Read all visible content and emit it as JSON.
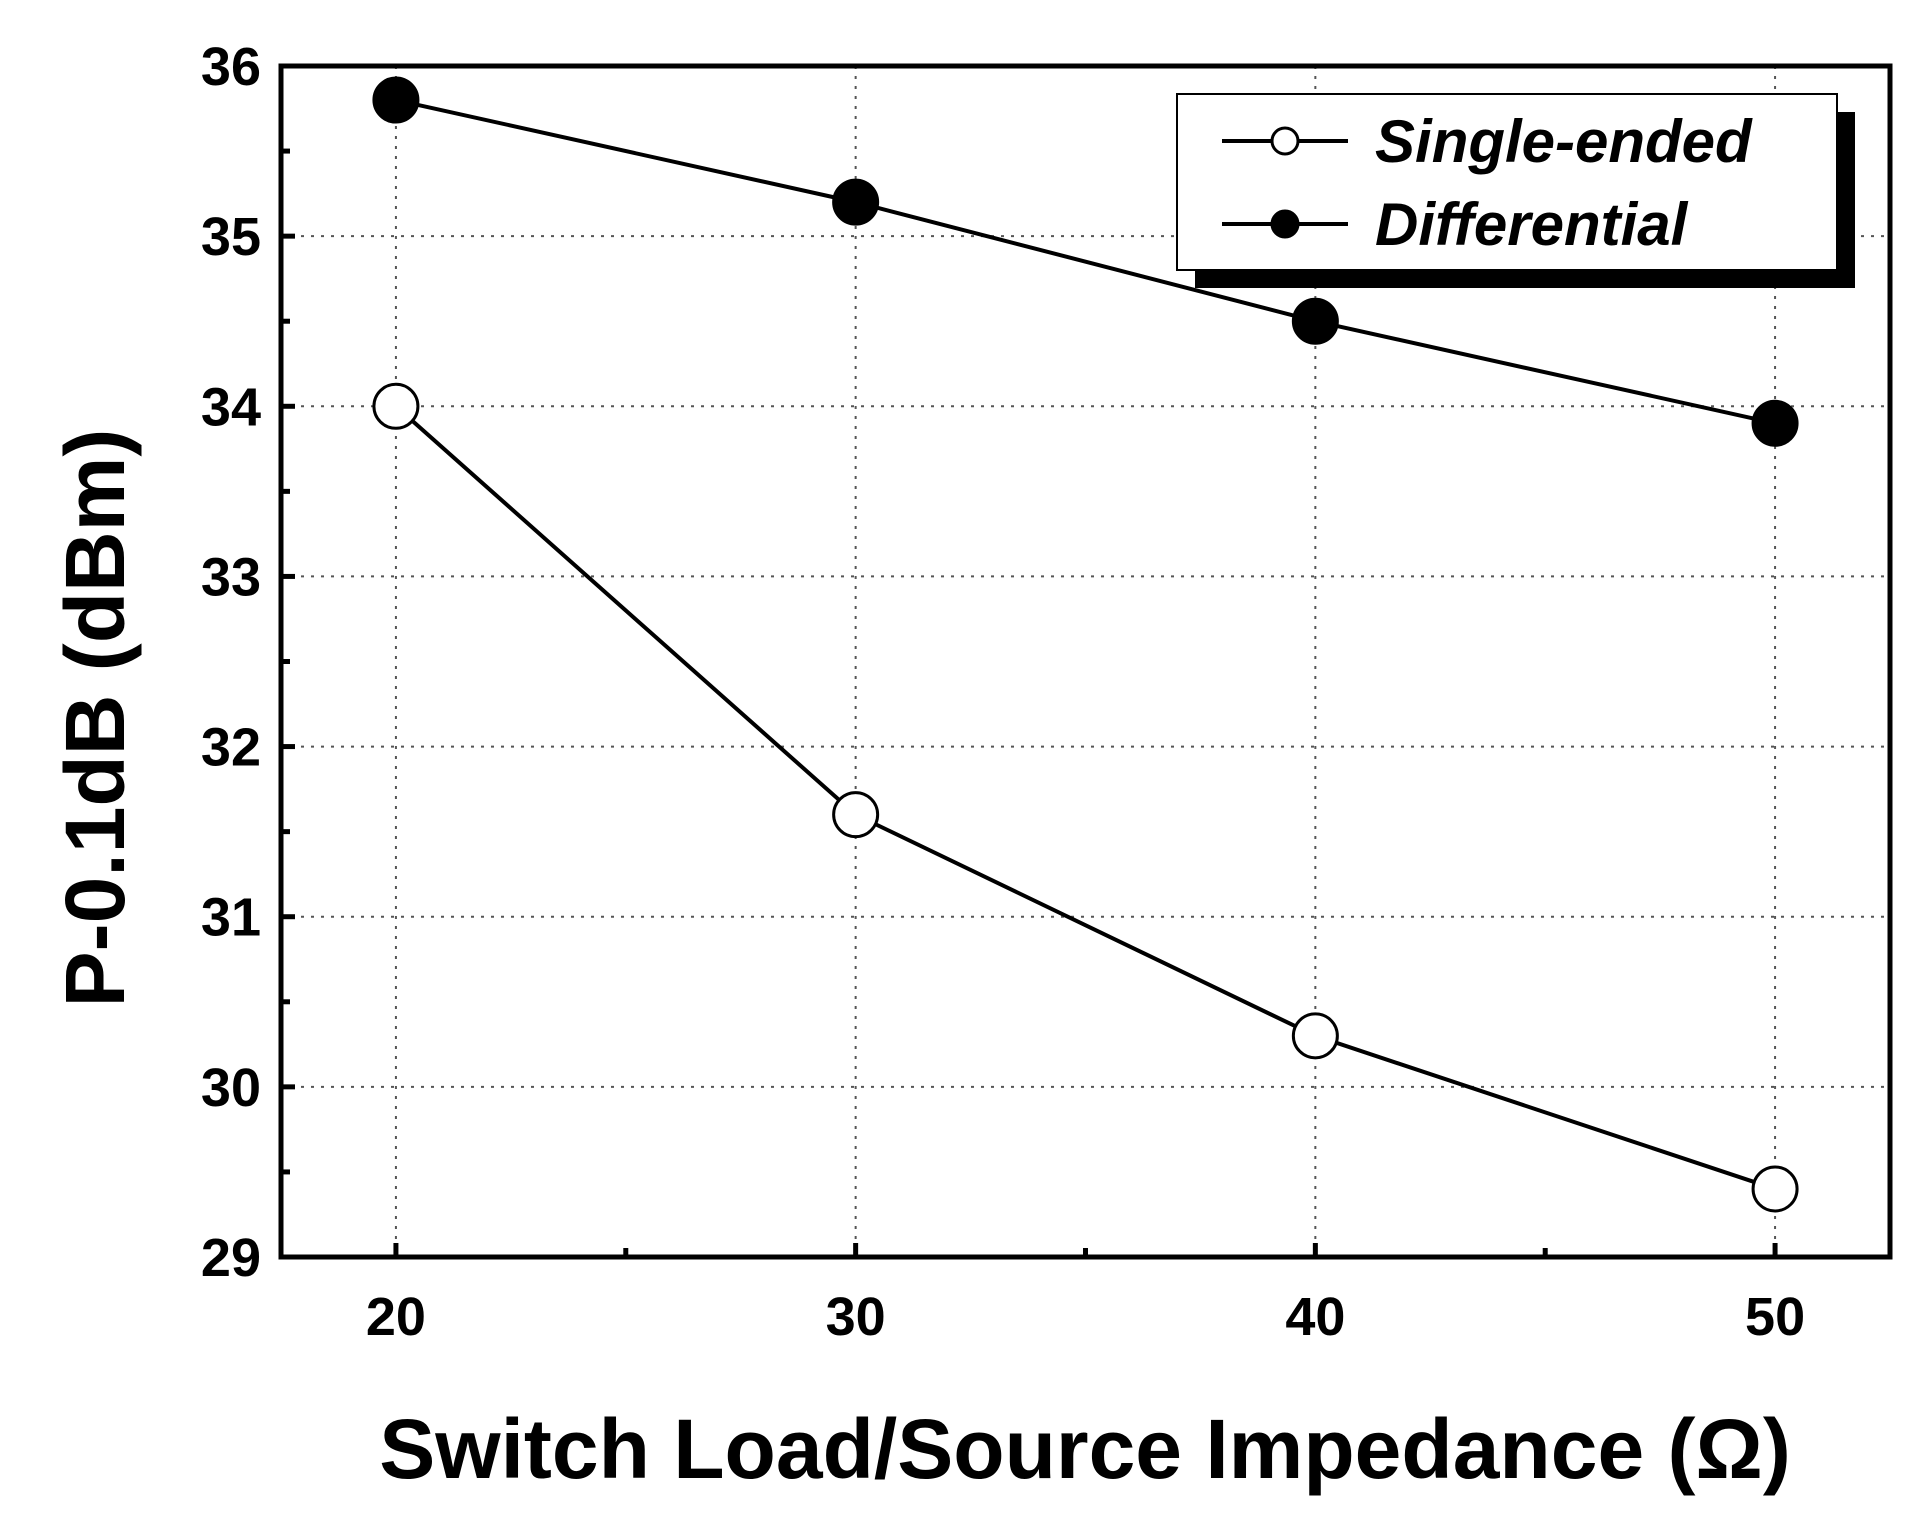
{
  "chart_data": {
    "type": "line",
    "title": "",
    "xlabel": "Switch Load/Source Impedance (Ω)",
    "ylabel": "P-0.1dB (dBm)",
    "x": [
      20,
      30,
      40,
      50
    ],
    "xlim": [
      17.5,
      52.5
    ],
    "ylim": [
      29,
      36
    ],
    "xticks": [
      20,
      30,
      40,
      50
    ],
    "yticks": [
      29,
      30,
      31,
      32,
      33,
      34,
      35,
      36
    ],
    "grid": true,
    "legend_position": "top-right",
    "series": [
      {
        "name": "Single-ended",
        "marker": "open-circle",
        "values": [
          34.0,
          31.6,
          30.3,
          29.4
        ]
      },
      {
        "name": "Differential",
        "marker": "filled-circle",
        "values": [
          35.8,
          35.2,
          34.5,
          33.9
        ]
      }
    ]
  }
}
